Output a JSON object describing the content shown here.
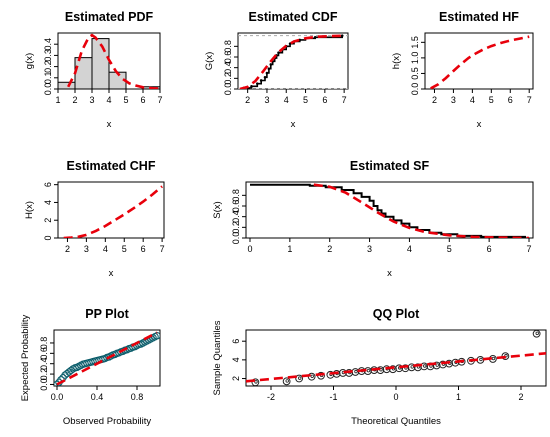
{
  "chart_data": [
    {
      "id": "pdf",
      "type": "bar",
      "title": "Estimated PDF",
      "xlabel": "x",
      "ylabel": "g(x)",
      "xlim": [
        1,
        7
      ],
      "ylim": [
        0,
        0.5
      ],
      "xticks": [
        1,
        2,
        3,
        4,
        5,
        6,
        7
      ],
      "yticks": [
        0.0,
        0.1,
        0.2,
        0.3,
        0.4
      ],
      "histogram": {
        "bin_edges": [
          1,
          1.5,
          2,
          2.5,
          3,
          3.5,
          4,
          4.5,
          5,
          5.5,
          6,
          6.5,
          7
        ],
        "values": [
          0.0,
          0.06,
          0.06,
          0.28,
          0.28,
          0.45,
          0.45,
          0.15,
          0.15,
          0.0,
          0.0,
          0.02,
          0.02
        ]
      },
      "bars": [
        {
          "x0": 1.0,
          "x1": 2.0,
          "value": 0.06
        },
        {
          "x0": 2.0,
          "x1": 3.0,
          "value": 0.28
        },
        {
          "x0": 3.0,
          "x1": 4.0,
          "value": 0.45
        },
        {
          "x0": 4.0,
          "x1": 5.0,
          "value": 0.15
        },
        {
          "x0": 5.0,
          "x1": 6.0,
          "value": 0.0
        },
        {
          "x0": 6.0,
          "x1": 7.0,
          "value": 0.02
        }
      ],
      "fitted_curve": {
        "x": [
          1.6,
          2.0,
          2.4,
          2.8,
          3.0,
          3.2,
          3.6,
          4.0,
          4.4,
          4.8,
          5.2,
          5.6,
          6.0,
          6.6,
          7.0
        ],
        "y": [
          0.02,
          0.14,
          0.34,
          0.46,
          0.48,
          0.46,
          0.38,
          0.26,
          0.16,
          0.09,
          0.05,
          0.03,
          0.015,
          0.006,
          0.003
        ]
      },
      "colors": {
        "bar_fill": "#d3d3d3",
        "curve": "#e8000b"
      }
    },
    {
      "id": "cdf",
      "type": "line",
      "title": "Estimated CDF",
      "xlabel": "x",
      "ylabel": "G(x)",
      "xlim": [
        1.5,
        7.2
      ],
      "ylim": [
        0,
        1.05
      ],
      "xticks": [
        2,
        3,
        4,
        5,
        6,
        7
      ],
      "yticks": [
        0.0,
        0.2,
        0.4,
        0.6,
        0.8
      ],
      "empirical_step": {
        "x": [
          1.8,
          2.2,
          2.5,
          2.7,
          2.9,
          3.0,
          3.1,
          3.2,
          3.3,
          3.4,
          3.5,
          3.6,
          3.8,
          4.0,
          4.2,
          4.4,
          4.7,
          5.0,
          5.5,
          6.9
        ],
        "y": [
          0.02,
          0.05,
          0.1,
          0.16,
          0.22,
          0.3,
          0.38,
          0.46,
          0.52,
          0.58,
          0.63,
          0.68,
          0.74,
          0.8,
          0.85,
          0.89,
          0.92,
          0.95,
          0.97,
          1.0
        ]
      },
      "fitted_curve": {
        "x": [
          1.6,
          2.0,
          2.4,
          2.8,
          3.2,
          3.6,
          4.0,
          4.4,
          5.0,
          5.6,
          6.2,
          7.0
        ],
        "y": [
          0.0,
          0.04,
          0.15,
          0.33,
          0.52,
          0.69,
          0.81,
          0.89,
          0.95,
          0.98,
          0.99,
          1.0
        ]
      },
      "reference_lines": [
        0,
        1
      ],
      "colors": {
        "step": "#000000",
        "curve": "#e8000b",
        "ref": "#aaaaaa"
      }
    },
    {
      "id": "hf",
      "type": "line",
      "title": "Estimated HF",
      "xlabel": "x",
      "ylabel": "h(x)",
      "xlim": [
        1.5,
        7.2
      ],
      "ylim": [
        0,
        1.8
      ],
      "xticks": [
        2,
        3,
        4,
        5,
        6,
        7
      ],
      "yticks": [
        0.0,
        0.5,
        1.0,
        1.5
      ],
      "series": [
        {
          "x": [
            1.8,
            2.2,
            2.6,
            3.0,
            3.4,
            3.8,
            4.2,
            4.6,
            5.0,
            5.5,
            6.0,
            6.5,
            7.0
          ],
          "y": [
            0.02,
            0.15,
            0.35,
            0.58,
            0.8,
            1.0,
            1.15,
            1.28,
            1.38,
            1.48,
            1.56,
            1.62,
            1.68
          ]
        }
      ],
      "colors": {
        "curve": "#e8000b"
      }
    },
    {
      "id": "chf",
      "type": "line",
      "title": "Estimated CHF",
      "xlabel": "x",
      "ylabel": "H(x)",
      "xlim": [
        1.5,
        7.1
      ],
      "ylim": [
        0,
        6.3
      ],
      "xticks": [
        2,
        3,
        4,
        5,
        6,
        7
      ],
      "yticks": [
        0,
        2,
        4,
        6
      ],
      "series": [
        {
          "x": [
            1.8,
            2.2,
            2.6,
            3.0,
            3.5,
            4.0,
            4.5,
            5.0,
            5.5,
            6.0,
            6.5,
            7.0
          ],
          "y": [
            0.0,
            0.05,
            0.15,
            0.35,
            0.8,
            1.35,
            2.0,
            2.65,
            3.35,
            4.1,
            4.9,
            5.8
          ]
        }
      ],
      "colors": {
        "curve": "#e8000b"
      }
    },
    {
      "id": "sf",
      "type": "line",
      "title": "Estimated SF",
      "xlabel": "x",
      "ylabel": "S(x)",
      "xlim": [
        -0.1,
        7.1
      ],
      "ylim": [
        0,
        1.05
      ],
      "xticks": [
        0,
        1,
        2,
        3,
        4,
        5,
        6,
        7
      ],
      "yticks": [
        0.0,
        0.2,
        0.4,
        0.6,
        0.8
      ],
      "empirical_step": {
        "x": [
          0.0,
          1.5,
          1.9,
          2.3,
          2.6,
          2.8,
          3.0,
          3.1,
          3.2,
          3.3,
          3.4,
          3.6,
          3.8,
          4.0,
          4.2,
          4.5,
          4.8,
          5.2,
          5.8,
          6.9
        ],
        "y": [
          1.0,
          0.98,
          0.95,
          0.9,
          0.84,
          0.77,
          0.7,
          0.6,
          0.52,
          0.46,
          0.4,
          0.33,
          0.27,
          0.2,
          0.15,
          0.1,
          0.07,
          0.04,
          0.02,
          0.0
        ]
      },
      "fitted_curve": {
        "x": [
          1.6,
          2.0,
          2.4,
          2.8,
          3.2,
          3.6,
          4.0,
          4.4,
          5.0,
          5.6,
          6.2,
          7.0
        ],
        "y": [
          1.0,
          0.96,
          0.85,
          0.67,
          0.48,
          0.31,
          0.19,
          0.11,
          0.05,
          0.02,
          0.01,
          0.0
        ]
      },
      "colors": {
        "step": "#000000",
        "curve": "#e8000b"
      }
    },
    {
      "id": "pp",
      "type": "scatter",
      "title": "PP Plot",
      "xlabel": "Observed Probability",
      "ylabel": "Expected Probability",
      "xlim": [
        -0.03,
        1.03
      ],
      "ylim": [
        -0.03,
        1.05
      ],
      "xticks": [
        0.0,
        0.4,
        0.8
      ],
      "yticks": [
        0.0,
        0.2,
        0.4,
        0.6,
        0.8
      ],
      "points": {
        "x": [
          0.0,
          0.02,
          0.04,
          0.06,
          0.08,
          0.1,
          0.12,
          0.14,
          0.16,
          0.18,
          0.2,
          0.22,
          0.24,
          0.26,
          0.28,
          0.3,
          0.32,
          0.34,
          0.36,
          0.38,
          0.4,
          0.42,
          0.44,
          0.46,
          0.48,
          0.5,
          0.52,
          0.54,
          0.56,
          0.58,
          0.6,
          0.62,
          0.64,
          0.66,
          0.68,
          0.7,
          0.72,
          0.74,
          0.76,
          0.78,
          0.8,
          0.82,
          0.84,
          0.86,
          0.88,
          0.9,
          0.92,
          0.94,
          0.96,
          0.98,
          1.0
        ],
        "y": [
          0.0,
          0.04,
          0.09,
          0.13,
          0.18,
          0.21,
          0.24,
          0.27,
          0.3,
          0.32,
          0.33,
          0.35,
          0.37,
          0.39,
          0.4,
          0.41,
          0.42,
          0.43,
          0.44,
          0.45,
          0.46,
          0.47,
          0.48,
          0.49,
          0.5,
          0.52,
          0.53,
          0.55,
          0.57,
          0.58,
          0.6,
          0.61,
          0.63,
          0.64,
          0.66,
          0.67,
          0.69,
          0.7,
          0.72,
          0.73,
          0.75,
          0.77,
          0.78,
          0.8,
          0.82,
          0.84,
          0.86,
          0.88,
          0.9,
          0.92,
          0.94
        ]
      },
      "reference_line": {
        "x": [
          0,
          1
        ],
        "y": [
          0,
          1
        ]
      },
      "colors": {
        "points": "#0b5d6b",
        "line": "#e8000b"
      }
    },
    {
      "id": "qq",
      "type": "scatter",
      "title": "QQ Plot",
      "xlabel": "Theoretical Quantiles",
      "ylabel": "Sample Quantiles",
      "xlim": [
        -2.4,
        2.4
      ],
      "ylim": [
        1.2,
        7.2
      ],
      "xticks": [
        -2,
        -1,
        0,
        1,
        2
      ],
      "yticks": [
        2,
        4,
        6
      ],
      "points": {
        "x": [
          -2.25,
          -1.75,
          -1.55,
          -1.35,
          -1.2,
          -1.05,
          -0.95,
          -0.85,
          -0.75,
          -0.65,
          -0.55,
          -0.45,
          -0.35,
          -0.25,
          -0.15,
          -0.05,
          0.05,
          0.15,
          0.25,
          0.35,
          0.45,
          0.55,
          0.65,
          0.75,
          0.85,
          0.95,
          1.05,
          1.2,
          1.35,
          1.55,
          1.75,
          2.25
        ],
        "y": [
          1.6,
          1.7,
          2.0,
          2.2,
          2.3,
          2.4,
          2.5,
          2.6,
          2.6,
          2.7,
          2.8,
          2.8,
          2.9,
          2.9,
          3.0,
          3.0,
          3.1,
          3.1,
          3.2,
          3.2,
          3.3,
          3.3,
          3.4,
          3.5,
          3.6,
          3.7,
          3.8,
          3.9,
          4.0,
          4.1,
          4.4,
          6.8
        ]
      },
      "reference_line": {
        "x": [
          -2.4,
          2.4
        ],
        "y": [
          1.7,
          4.7
        ]
      },
      "colors": {
        "points": "#222222",
        "line": "#e8000b"
      }
    }
  ]
}
